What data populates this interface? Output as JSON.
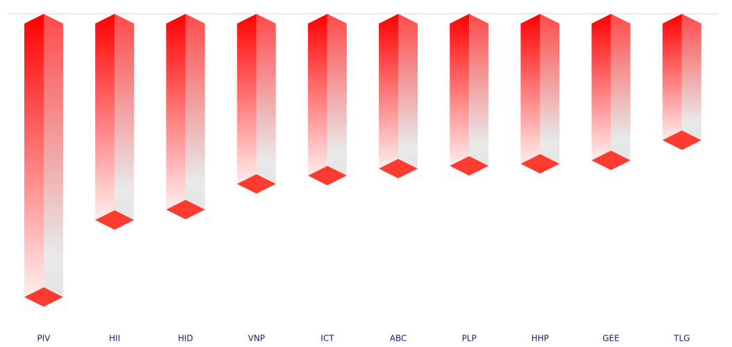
{
  "chart_data": {
    "type": "bar3d",
    "categories": [
      "PIV",
      "HII",
      "HID",
      "VNP",
      "ICT",
      "ABC",
      "PLP",
      "HHP",
      "GEE",
      "TLG"
    ],
    "values": [
      -40.8,
      -29.7,
      -28.2,
      -24.5,
      -23.3,
      -22.3,
      -21.9,
      -21.6,
      -21.1,
      -18.2
    ],
    "color": "#ff0000",
    "ylim": [
      -45,
      0
    ]
  }
}
